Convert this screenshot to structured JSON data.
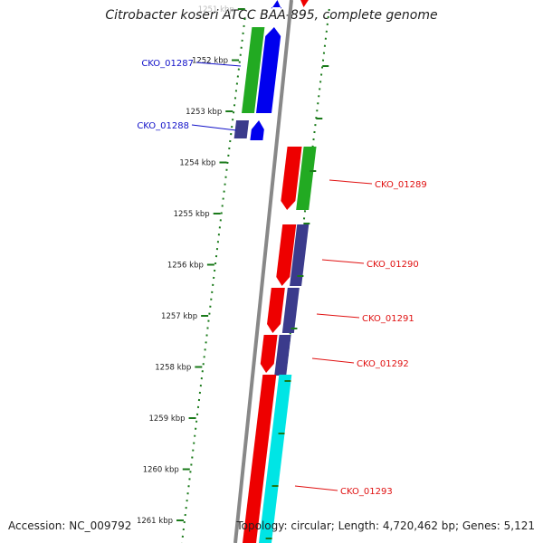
{
  "title": "Citrobacter koseri ATCC BAA-895, complete genome",
  "footer": {
    "accession": "Accession: NC_009792",
    "summary": "Topology: circular; Length: 4,720,462 bp; Genes: 5,121"
  },
  "ruler": {
    "ticks": [
      "1251 kbp",
      "1252 kbp",
      "1253 kbp",
      "1254 kbp",
      "1255 kbp",
      "1256 kbp",
      "1257 kbp",
      "1258 kbp",
      "1259 kbp",
      "1260 kbp",
      "1261 kbp"
    ]
  },
  "genes": [
    {
      "label": "CKO_01287",
      "color": "#1010c8"
    },
    {
      "label": "CKO_01288",
      "color": "#1010c8"
    },
    {
      "label": "CKO_01289",
      "color": "#e01010"
    },
    {
      "label": "CKO_01290",
      "color": "#e01010"
    },
    {
      "label": "CKO_01291",
      "color": "#e01010"
    },
    {
      "label": "CKO_01292",
      "color": "#e01010"
    },
    {
      "label": "CKO_01293",
      "color": "#e01010"
    }
  ],
  "colors": {
    "forward_cds": "#0000ee",
    "forward_gene": "#22aa22",
    "reverse_cds": "#ee0000",
    "reverse_gene": "#22aa22",
    "cog_dark": "#3b3b8c",
    "cog_cyan": "#00e5e5",
    "backbone": "#888888",
    "gc_skew": "#1a7a1a"
  }
}
